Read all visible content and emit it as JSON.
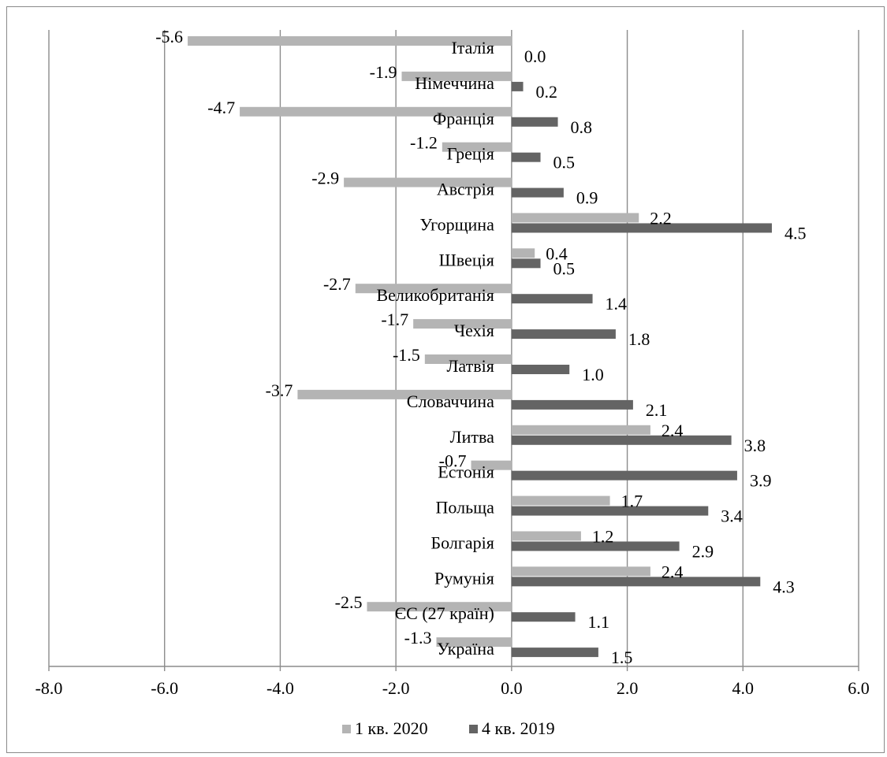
{
  "chart_data": {
    "type": "bar",
    "orientation": "horizontal",
    "categories": [
      "Італія",
      "Німеччина",
      "Франція",
      "Греція",
      "Австрія",
      "Угорщина",
      "Швеція",
      "Великобританія",
      "Чехія",
      "Латвія",
      "Словаччина",
      "Литва",
      "Естонія",
      "Польща",
      "Болгарія",
      "Румунія",
      "ЄС (27 країн)",
      "Україна"
    ],
    "series": [
      {
        "name": "1 кв. 2020",
        "color": "#b4b4b4",
        "values": [
          -5.6,
          -1.9,
          -4.7,
          -1.2,
          -2.9,
          2.2,
          0.4,
          -2.7,
          -1.7,
          -1.5,
          -3.7,
          2.4,
          -0.7,
          1.7,
          1.2,
          2.4,
          -2.5,
          -1.3
        ],
        "labels": [
          "-5.6",
          "-1.9",
          "-4.7",
          "-1.2",
          "-2.9",
          "2.2",
          "0.4",
          "-2.7",
          "-1.7",
          "-1.5",
          "-3.7",
          "2.4",
          "-0.7",
          "1.7",
          "1.2",
          "2.4",
          "-2.5",
          "-1.3"
        ]
      },
      {
        "name": "4 кв. 2019",
        "color": "#646464",
        "values": [
          0.0,
          0.2,
          0.8,
          0.5,
          0.9,
          4.5,
          0.5,
          1.4,
          1.8,
          1.0,
          2.1,
          3.8,
          3.9,
          3.4,
          2.9,
          4.3,
          1.1,
          1.5
        ],
        "labels": [
          "0.0",
          "0.2",
          "0.8",
          "0.5",
          "0.9",
          "4.5",
          "0.5",
          "1.4",
          "1.8",
          "1.0",
          "2.1",
          "3.8",
          "3.9",
          "3.4",
          "2.9",
          "4.3",
          "1.1",
          "1.5"
        ]
      }
    ],
    "xlim": [
      -8.0,
      6.0
    ],
    "xticks": [
      "-8.0",
      "-6.0",
      "-4.0",
      "-2.0",
      "0.0",
      "2.0",
      "4.0",
      "6.0"
    ],
    "grid": true,
    "legend_position": "bottom",
    "title": "",
    "xlabel": "",
    "ylabel": ""
  }
}
